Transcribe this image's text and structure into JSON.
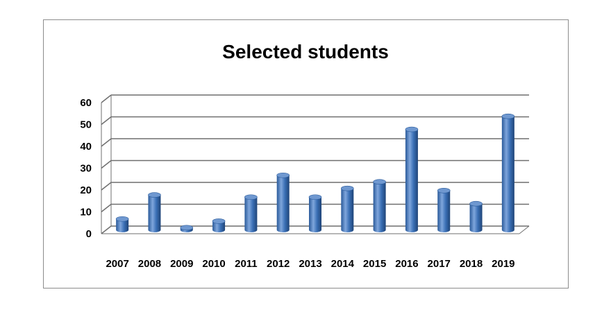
{
  "chart_data": {
    "type": "bar",
    "title": "Selected students",
    "xlabel": "",
    "ylabel": "",
    "categories": [
      "2007",
      "2008",
      "2009",
      "2010",
      "2011",
      "2012",
      "2013",
      "2014",
      "2015",
      "2016",
      "2017",
      "2018",
      "2019"
    ],
    "values": [
      5,
      16,
      1,
      4,
      15,
      25,
      15,
      19,
      22,
      46,
      18,
      12,
      52
    ],
    "ylim": [
      0,
      60
    ],
    "yticks": [
      0,
      10,
      20,
      30,
      40,
      50,
      60
    ],
    "grid": true,
    "legend": "none",
    "style": "3d-cylinder",
    "bar_color": "#3a6fb5",
    "bar_highlight": "#7fa6dc",
    "bar_shadow": "#20497f",
    "grid_color": "#6f6f6f"
  }
}
